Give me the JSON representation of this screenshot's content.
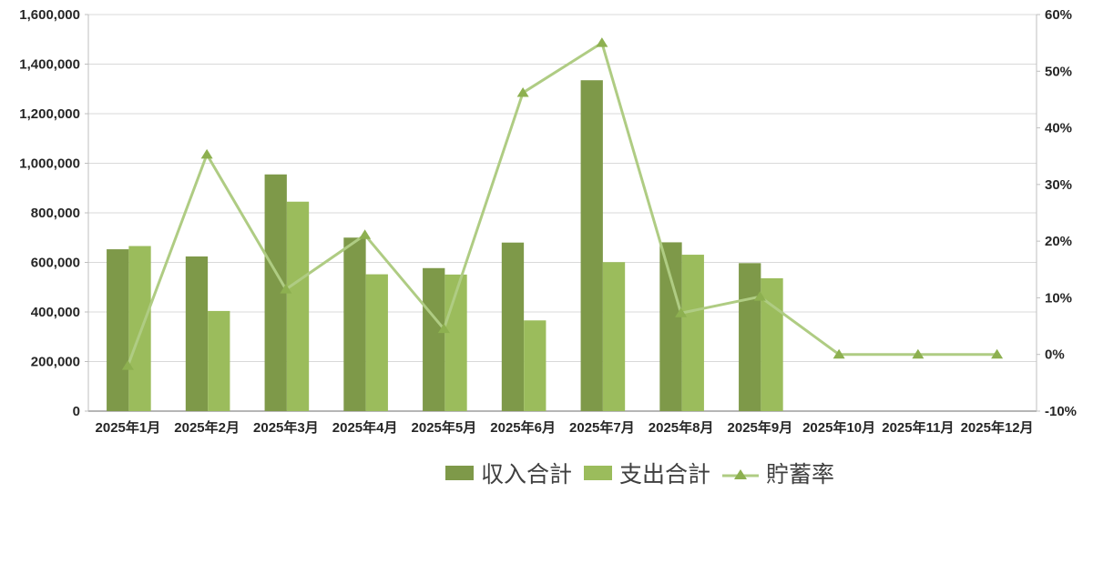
{
  "chart_data": {
    "type": "bar+line",
    "title": "",
    "categories": [
      "2025年1月",
      "2025年2月",
      "2025年3月",
      "2025年4月",
      "2025年5月",
      "2025年6月",
      "2025年7月",
      "2025年8月",
      "2025年9月",
      "2025年10月",
      "2025年11月",
      "2025年12月"
    ],
    "series": [
      {
        "name": "収入合計",
        "type": "bar",
        "axis": "left",
        "color": "#7E9949",
        "values": [
          653000,
          624000,
          955000,
          700000,
          577000,
          680000,
          1335000,
          681000,
          597000,
          0,
          0,
          0
        ]
      },
      {
        "name": "支出合計",
        "type": "bar",
        "axis": "left",
        "color": "#9BBC5C",
        "values": [
          666000,
          404000,
          845000,
          552000,
          551000,
          366000,
          601000,
          631000,
          536000,
          0,
          0,
          0
        ]
      },
      {
        "name": "貯蓄率",
        "type": "line",
        "axis": "right",
        "color": "#AFCC83",
        "marker": "triangle",
        "marker_color": "#8DB050",
        "values": [
          -2.0,
          35.3,
          11.5,
          21.1,
          4.5,
          46.2,
          55.0,
          7.3,
          10.2,
          0.0,
          0.0,
          0.0
        ]
      }
    ],
    "y_axis": {
      "min": 0,
      "max": 1600000,
      "step": 200000,
      "tick_labels": [
        "1,600,000",
        "1,400,000",
        "1,200,000",
        "1,000,000",
        "800,000",
        "600,000",
        "400,000",
        "200,000",
        "0"
      ]
    },
    "y2_axis": {
      "min": -10,
      "max": 60,
      "step": 10,
      "tick_labels": [
        "60%",
        "50%",
        "40%",
        "30%",
        "20%",
        "10%",
        "0%",
        "-10%"
      ]
    },
    "grid": true,
    "legend_position": "bottom"
  },
  "colors": {
    "background": "#ffffff",
    "gridline": "#D9D9D9",
    "plot_border": "#BFBFBF",
    "axis_line": "#9E9E9E",
    "tick_text": "#262626",
    "legend_text": "#3f3f3f"
  }
}
